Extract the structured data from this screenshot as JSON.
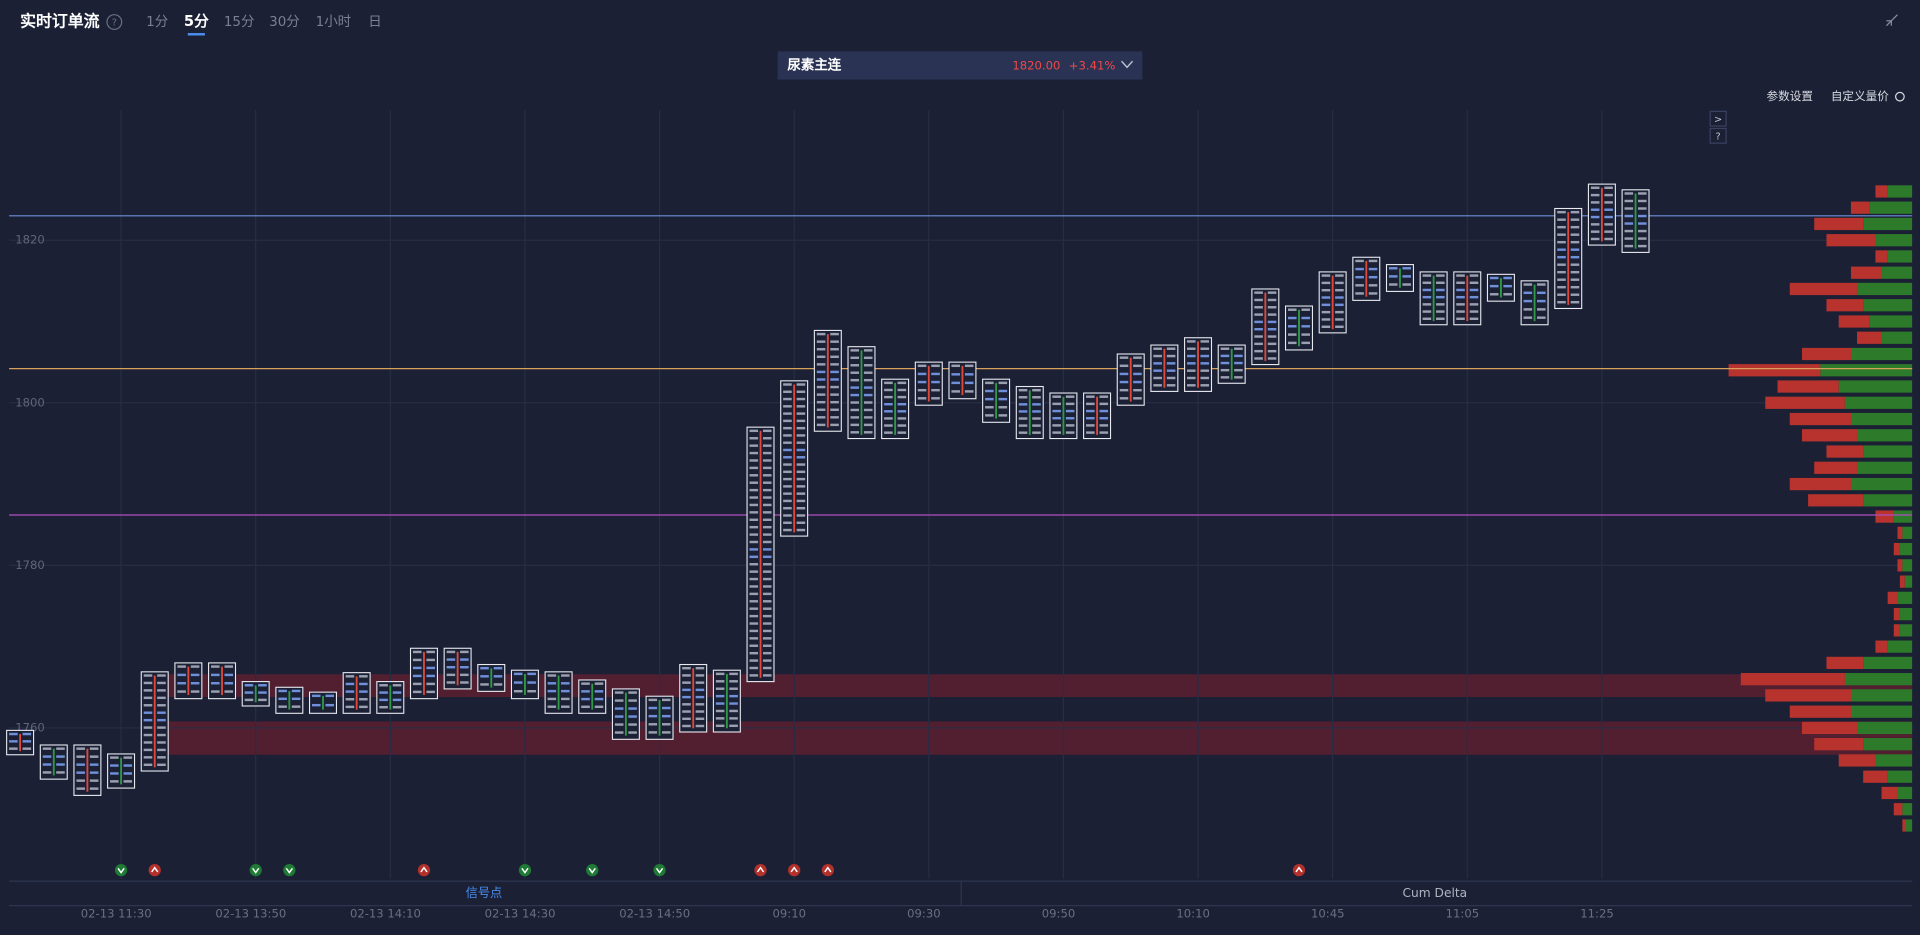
{
  "header": {
    "title": "实时订单流",
    "help": "?",
    "tabs": [
      "1分",
      "5分",
      "15分",
      "30分",
      "1小时",
      "日"
    ],
    "active_tab": 1
  },
  "instrument": {
    "name": "尿素主连",
    "price": "1820.00",
    "change": "+3.41%"
  },
  "toolbar": {
    "settings": "参数设置",
    "custom": "自定义量价",
    "side_buttons": [
      ">",
      "?"
    ]
  },
  "chart": {
    "type": "footprint",
    "ylim": [
      1741,
      1836
    ],
    "yticks": [
      1760,
      1780,
      1800,
      1820
    ],
    "levels": [
      {
        "value": 1823,
        "color": "#6f8fd8"
      },
      {
        "value": 1804.2,
        "color": "#d9a05b"
      },
      {
        "value": 1786.2,
        "color": "#b04fc0"
      }
    ],
    "zones": [
      {
        "from": 1763.8,
        "to": 1766.6
      },
      {
        "from": 1756.7,
        "to": 1760.8
      }
    ],
    "categories": [
      null,
      null,
      null,
      "02-13 11:30",
      null,
      null,
      null,
      "02-13 13:50",
      null,
      null,
      null,
      "02-13 14:10",
      null,
      null,
      null,
      "02-13 14:30",
      null,
      null,
      null,
      "02-13 14:50",
      null,
      null,
      null,
      "09:10",
      null,
      null,
      null,
      "09:30",
      null,
      null,
      null,
      "09:50",
      null,
      null,
      null,
      "10:10",
      null,
      null,
      null,
      "10:45",
      null,
      null,
      null,
      "11:05",
      null,
      null,
      null,
      "11:25",
      null
    ],
    "candles": [
      {
        "high": 1759.7,
        "low": 1756.7
      },
      {
        "high": 1757.9,
        "low": 1753.7
      },
      {
        "high": 1757.9,
        "low": 1751.7
      },
      {
        "high": 1756.8,
        "low": 1752.6,
        "signal": "down"
      },
      {
        "high": 1766.9,
        "low": 1754.7,
        "signal": "up"
      },
      {
        "high": 1768.0,
        "low": 1763.6
      },
      {
        "high": 1768.0,
        "low": 1763.6
      },
      {
        "high": 1765.7,
        "low": 1762.7,
        "signal": "down"
      },
      {
        "high": 1765.0,
        "low": 1761.8,
        "signal": "down"
      },
      {
        "high": 1764.4,
        "low": 1761.8
      },
      {
        "high": 1766.8,
        "low": 1761.8
      },
      {
        "high": 1765.7,
        "low": 1761.8
      },
      {
        "high": 1769.8,
        "low": 1763.6,
        "signal": "up"
      },
      {
        "high": 1769.8,
        "low": 1764.8
      },
      {
        "high": 1767.8,
        "low": 1764.5
      },
      {
        "high": 1767.1,
        "low": 1763.6,
        "signal": "down"
      },
      {
        "high": 1766.9,
        "low": 1761.8
      },
      {
        "high": 1765.9,
        "low": 1761.8,
        "signal": "down"
      },
      {
        "high": 1764.8,
        "low": 1758.6
      },
      {
        "high": 1763.9,
        "low": 1758.6,
        "signal": "down"
      },
      {
        "high": 1767.8,
        "low": 1759.5
      },
      {
        "high": 1767.1,
        "low": 1759.5
      },
      {
        "high": 1797.0,
        "low": 1765.7,
        "signal": "up"
      },
      {
        "high": 1802.7,
        "low": 1783.6,
        "signal": "up"
      },
      {
        "high": 1808.9,
        "low": 1796.5,
        "signal": "up"
      },
      {
        "high": 1806.9,
        "low": 1795.6
      },
      {
        "high": 1802.9,
        "low": 1795.6
      },
      {
        "high": 1805.0,
        "low": 1799.7
      },
      {
        "high": 1805.0,
        "low": 1800.5
      },
      {
        "high": 1802.9,
        "low": 1797.6
      },
      {
        "high": 1802.0,
        "low": 1795.6
      },
      {
        "high": 1801.2,
        "low": 1795.6
      },
      {
        "high": 1801.2,
        "low": 1795.6
      },
      {
        "high": 1806.0,
        "low": 1799.7
      },
      {
        "high": 1807.1,
        "low": 1801.4
      },
      {
        "high": 1808.0,
        "low": 1801.4
      },
      {
        "high": 1807.1,
        "low": 1802.4
      },
      {
        "high": 1814.0,
        "low": 1804.7
      },
      {
        "high": 1811.9,
        "low": 1806.5,
        "signal": "up"
      },
      {
        "high": 1816.1,
        "low": 1808.6
      },
      {
        "high": 1817.9,
        "low": 1812.6
      },
      {
        "high": 1817.0,
        "low": 1813.7
      },
      {
        "high": 1816.1,
        "low": 1809.6
      },
      {
        "high": 1816.1,
        "low": 1809.6
      },
      {
        "high": 1815.8,
        "low": 1812.5
      },
      {
        "high": 1815.0,
        "low": 1809.6
      },
      {
        "high": 1823.9,
        "low": 1811.6
      },
      {
        "high": 1826.9,
        "low": 1819.4
      },
      {
        "high": 1826.2,
        "low": 1818.5
      }
    ],
    "profile": [
      {
        "price": 1826,
        "buy": 20,
        "sell": 10
      },
      {
        "price": 1824,
        "buy": 35,
        "sell": 15
      },
      {
        "price": 1822,
        "buy": 40,
        "sell": 40
      },
      {
        "price": 1820,
        "buy": 30,
        "sell": 40
      },
      {
        "price": 1818,
        "buy": 20,
        "sell": 10
      },
      {
        "price": 1816,
        "buy": 25,
        "sell": 25
      },
      {
        "price": 1814,
        "buy": 45,
        "sell": 55
      },
      {
        "price": 1812,
        "buy": 40,
        "sell": 30
      },
      {
        "price": 1810,
        "buy": 35,
        "sell": 25
      },
      {
        "price": 1808,
        "buy": 25,
        "sell": 20
      },
      {
        "price": 1806,
        "buy": 50,
        "sell": 40
      },
      {
        "price": 1804,
        "buy": 75,
        "sell": 75
      },
      {
        "price": 1802,
        "buy": 60,
        "sell": 50
      },
      {
        "price": 1800,
        "buy": 55,
        "sell": 65
      },
      {
        "price": 1798,
        "buy": 50,
        "sell": 50
      },
      {
        "price": 1796,
        "buy": 45,
        "sell": 45
      },
      {
        "price": 1794,
        "buy": 40,
        "sell": 30
      },
      {
        "price": 1792,
        "buy": 45,
        "sell": 35
      },
      {
        "price": 1790,
        "buy": 50,
        "sell": 50
      },
      {
        "price": 1788,
        "buy": 40,
        "sell": 45
      },
      {
        "price": 1786,
        "buy": 15,
        "sell": 15
      },
      {
        "price": 1784,
        "buy": 8,
        "sell": 4
      },
      {
        "price": 1782,
        "buy": 10,
        "sell": 5
      },
      {
        "price": 1780,
        "buy": 8,
        "sell": 4
      },
      {
        "price": 1778,
        "buy": 6,
        "sell": 4
      },
      {
        "price": 1776,
        "buy": 12,
        "sell": 8
      },
      {
        "price": 1774,
        "buy": 10,
        "sell": 5
      },
      {
        "price": 1772,
        "buy": 10,
        "sell": 5
      },
      {
        "price": 1770,
        "buy": 20,
        "sell": 10
      },
      {
        "price": 1768,
        "buy": 40,
        "sell": 30
      },
      {
        "price": 1766,
        "buy": 55,
        "sell": 85
      },
      {
        "price": 1764,
        "buy": 50,
        "sell": 70
      },
      {
        "price": 1762,
        "buy": 50,
        "sell": 50
      },
      {
        "price": 1760,
        "buy": 45,
        "sell": 45
      },
      {
        "price": 1758,
        "buy": 40,
        "sell": 40
      },
      {
        "price": 1756,
        "buy": 30,
        "sell": 30
      },
      {
        "price": 1754,
        "buy": 20,
        "sell": 20
      },
      {
        "price": 1752,
        "buy": 12,
        "sell": 13
      },
      {
        "price": 1750,
        "buy": 8,
        "sell": 7
      },
      {
        "price": 1748,
        "buy": 5,
        "sell": 3
      }
    ]
  },
  "panels": {
    "signals": "信号点",
    "delta": "Cum Delta"
  }
}
